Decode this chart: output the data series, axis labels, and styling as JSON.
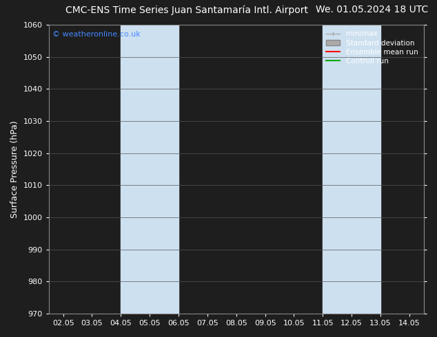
{
  "title_left": "CMC-ENS Time Series Juan Santamaría Intl. Airport",
  "title_right": "We. 01.05.2024 18 UTC",
  "ylabel": "Surface Pressure (hPa)",
  "xlabel": "",
  "watermark": "© weatheronline.co.uk",
  "watermark_color": "#4488ff",
  "ylim": [
    970,
    1060
  ],
  "yticks": [
    970,
    980,
    990,
    1000,
    1010,
    1020,
    1030,
    1040,
    1050,
    1060
  ],
  "xtick_labels": [
    "02.05",
    "03.05",
    "04.05",
    "05.05",
    "06.05",
    "07.05",
    "08.05",
    "09.05",
    "10.05",
    "11.05",
    "12.05",
    "13.05",
    "14.05"
  ],
  "xtick_positions": [
    0,
    1,
    2,
    3,
    4,
    5,
    6,
    7,
    8,
    9,
    10,
    11,
    12
  ],
  "xlim": [
    -0.5,
    12.5
  ],
  "shaded_bands": [
    {
      "x_start": 2,
      "x_end": 4,
      "color": "#cde0f0"
    },
    {
      "x_start": 9,
      "x_end": 11,
      "color": "#cde0f0"
    }
  ],
  "bg_color": "#1e1e1e",
  "plot_bg_color": "#1e1e1e",
  "text_color": "#ffffff",
  "grid_color": "#555555",
  "spine_color": "#888888",
  "legend_entries": [
    {
      "label": "min/max",
      "color": "#aaaaaa"
    },
    {
      "label": "Standard deviation",
      "color": "#888888"
    },
    {
      "label": "Ensemble mean run",
      "color": "#ff0000"
    },
    {
      "label": "Controll run",
      "color": "#00aa00"
    }
  ],
  "title_fontsize": 10,
  "tick_fontsize": 8,
  "ylabel_fontsize": 9,
  "watermark_fontsize": 8
}
